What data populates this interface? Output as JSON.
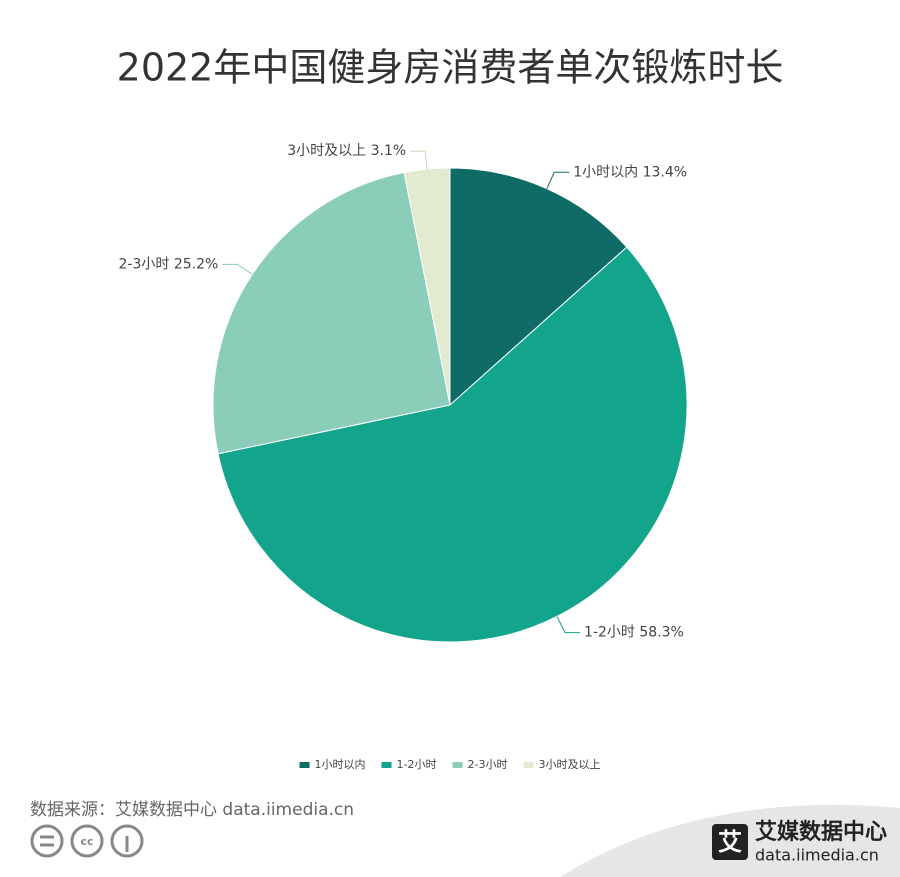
{
  "chart_data": {
    "type": "pie",
    "title": "2022年中国健身房消费者单次锻炼时长",
    "categories": [
      "1小时以内",
      "1-2小时",
      "2-3小时",
      "3小时及以上"
    ],
    "values": [
      13.4,
      58.3,
      25.2,
      3.1
    ],
    "value_labels": [
      "13.4%",
      "58.3%",
      "25.2%",
      "3.1%"
    ],
    "colors": [
      "#0e6b65",
      "#13a58b",
      "#8acdb9",
      "#e2ead0"
    ],
    "legend": "bottom"
  },
  "footer": {
    "source": "数据来源：艾媒数据中心 data.iimedia.cn",
    "logo": "艾媒数据中心",
    "logo_url": "data.iimedia.cn"
  }
}
